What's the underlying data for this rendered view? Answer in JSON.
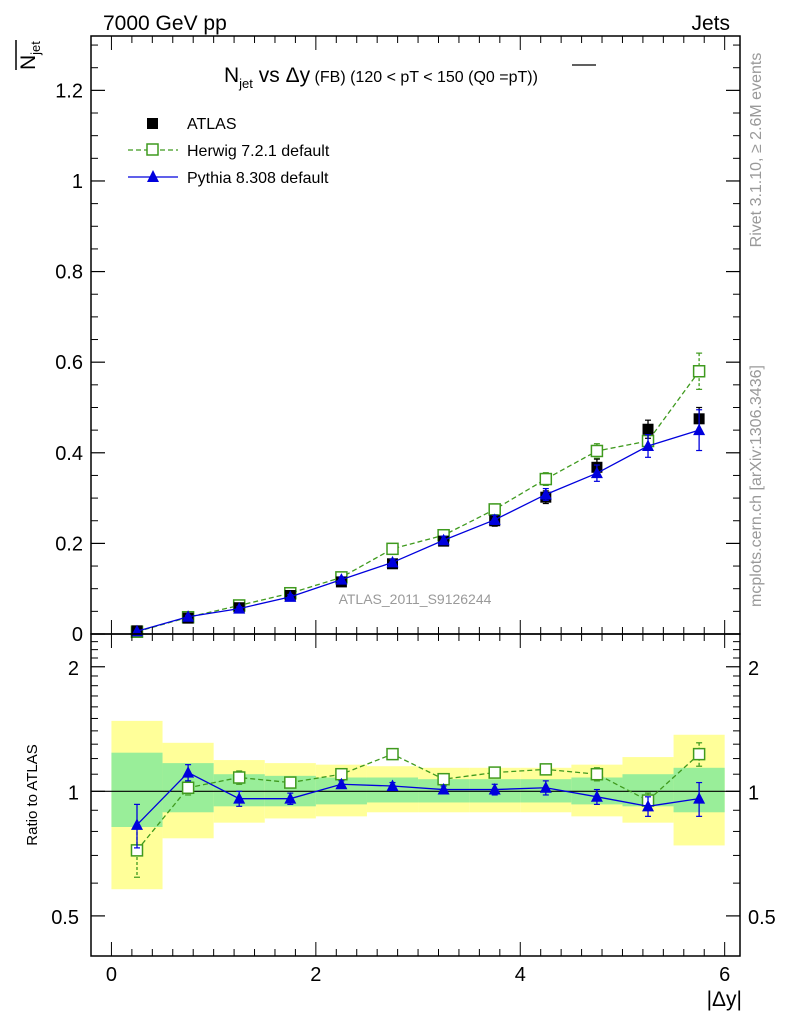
{
  "header": {
    "left": "7000 GeV pp",
    "right": "Jets"
  },
  "side_text": {
    "rivet": "Rivet 3.1.10, ≥ 2.6M events",
    "mcplots": "mcplots.cern.ch [arXiv:1306.3436]"
  },
  "chart_data": [
    {
      "type": "scatter",
      "title_parts": {
        "n": "N",
        "sub": "jet",
        "vs": " vs Δy",
        "fb": " (FB)",
        "range": " (120 < pT < 150 (Q0 =",
        "over": "pT",
        "close": "))"
      },
      "ylabel_parts": {
        "n": "N",
        "sub": "jet"
      },
      "watermark": "ATLAS_2011_S9126244",
      "xlim": [
        -0.2,
        6.15
      ],
      "ylim": [
        0,
        1.32
      ],
      "yticks": [
        0,
        0.2,
        0.4,
        0.6,
        0.8,
        1,
        1.2
      ],
      "ytick_labels": [
        "0",
        "0.2",
        "0.4",
        "0.6",
        "0.8",
        "1",
        "1.2"
      ],
      "x": [
        0.25,
        0.75,
        1.25,
        1.75,
        2.25,
        2.75,
        3.25,
        3.75,
        4.25,
        4.75,
        5.25,
        5.75
      ],
      "series": [
        {
          "name": "ATLAS",
          "color": "#000000",
          "marker": "filled-square",
          "values": [
            0.007,
            0.035,
            0.058,
            0.085,
            0.115,
            0.155,
            0.205,
            0.25,
            0.302,
            0.368,
            0.452,
            0.475
          ],
          "errors": [
            0.002,
            0.004,
            0.004,
            0.006,
            0.007,
            0.008,
            0.01,
            0.012,
            0.014,
            0.018,
            0.02,
            0.025
          ]
        },
        {
          "name": "Herwig 7.2.1 default",
          "color": "#3f9a1e",
          "marker": "open-square",
          "line": "dashed",
          "values": [
            0.005,
            0.037,
            0.063,
            0.09,
            0.125,
            0.188,
            0.218,
            0.275,
            0.342,
            0.404,
            0.426,
            0.58
          ],
          "errors": [
            0.001,
            0.003,
            0.004,
            0.005,
            0.006,
            0.008,
            0.01,
            0.012,
            0.014,
            0.016,
            0.02,
            0.04
          ]
        },
        {
          "name": "Pythia 8.308 default",
          "color": "#0000dd",
          "marker": "filled-triangle",
          "line": "solid",
          "values": [
            0.006,
            0.038,
            0.056,
            0.082,
            0.12,
            0.158,
            0.207,
            0.252,
            0.308,
            0.355,
            0.415,
            0.45
          ],
          "errors": [
            0.001,
            0.003,
            0.004,
            0.005,
            0.006,
            0.007,
            0.009,
            0.01,
            0.013,
            0.018,
            0.025,
            0.045
          ]
        }
      ]
    },
    {
      "type": "scatter",
      "ylabel": "Ratio to ATLAS",
      "xlabel": "|Δy|",
      "xlim": [
        -0.2,
        6.15
      ],
      "ylim": [
        0.4,
        2.4
      ],
      "ylog": true,
      "yticks": [
        0.5,
        1,
        2
      ],
      "ytick_labels": [
        "0.5",
        "1",
        "2"
      ],
      "xticks": [
        0,
        2,
        4,
        6
      ],
      "xtick_labels": [
        "0",
        "2",
        "4",
        "6"
      ],
      "x": [
        0.25,
        0.75,
        1.25,
        1.75,
        2.25,
        2.75,
        3.25,
        3.75,
        4.25,
        4.75,
        5.25,
        5.75
      ],
      "bins": [
        [
          0,
          0.5
        ],
        [
          0.5,
          1
        ],
        [
          1,
          1.5
        ],
        [
          1.5,
          2
        ],
        [
          2,
          2.5
        ],
        [
          2.5,
          3
        ],
        [
          3,
          3.5
        ],
        [
          3.5,
          4
        ],
        [
          4,
          4.5
        ],
        [
          4.5,
          5
        ],
        [
          5,
          5.5
        ],
        [
          5.5,
          6
        ]
      ],
      "band_inner": [
        [
          0.82,
          1.24
        ],
        [
          0.89,
          1.17
        ],
        [
          0.92,
          1.1
        ],
        [
          0.92,
          1.09
        ],
        [
          0.93,
          1.08
        ],
        [
          0.94,
          1.08
        ],
        [
          0.94,
          1.07
        ],
        [
          0.94,
          1.07
        ],
        [
          0.94,
          1.07
        ],
        [
          0.93,
          1.08
        ],
        [
          0.92,
          1.1
        ],
        [
          0.89,
          1.14
        ]
      ],
      "band_outer": [
        [
          0.58,
          1.48
        ],
        [
          0.77,
          1.31
        ],
        [
          0.84,
          1.19
        ],
        [
          0.86,
          1.17
        ],
        [
          0.87,
          1.16
        ],
        [
          0.89,
          1.15
        ],
        [
          0.89,
          1.14
        ],
        [
          0.89,
          1.14
        ],
        [
          0.89,
          1.14
        ],
        [
          0.87,
          1.16
        ],
        [
          0.84,
          1.21
        ],
        [
          0.74,
          1.37
        ]
      ],
      "series": [
        {
          "name": "Herwig 7.2.1 default",
          "color": "#3f9a1e",
          "marker": "open-square",
          "line": "dashed",
          "values": [
            0.72,
            1.02,
            1.08,
            1.05,
            1.1,
            1.23,
            1.07,
            1.11,
            1.13,
            1.1,
            0.95,
            1.23
          ],
          "errors": [
            0.1,
            0.04,
            0.04,
            0.03,
            0.03,
            0.02,
            0.02,
            0.03,
            0.03,
            0.04,
            0.04,
            0.08
          ]
        },
        {
          "name": "Pythia 8.308 default",
          "color": "#0000dd",
          "marker": "filled-triangle",
          "line": "solid",
          "values": [
            0.83,
            1.11,
            0.96,
            0.96,
            1.04,
            1.03,
            1.01,
            1.01,
            1.02,
            0.97,
            0.92,
            0.96
          ],
          "errors": [
            0.1,
            0.05,
            0.04,
            0.03,
            0.02,
            0.02,
            0.02,
            0.03,
            0.04,
            0.04,
            0.05,
            0.09
          ]
        }
      ]
    }
  ]
}
